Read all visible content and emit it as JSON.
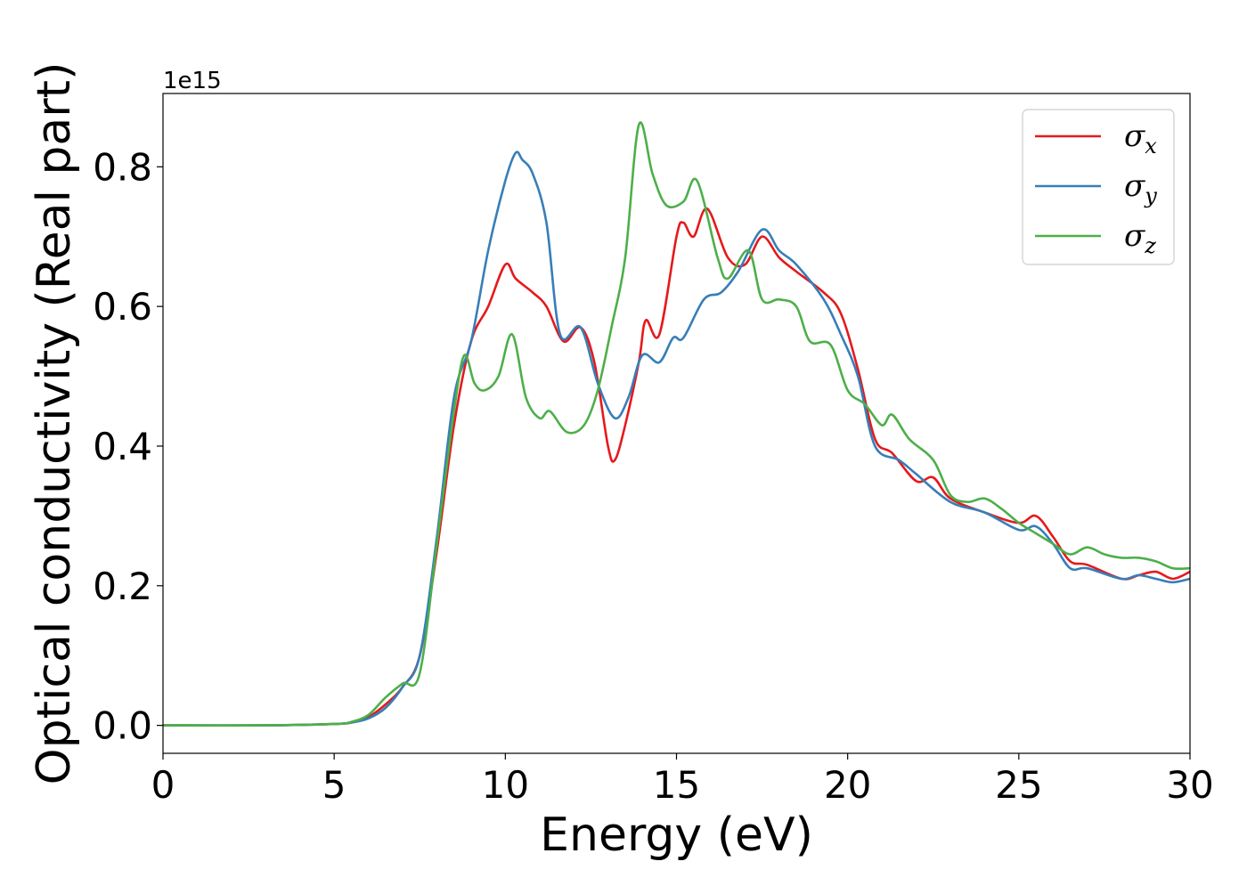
{
  "chart_data": {
    "type": "line",
    "xlabel": "Energy (eV)",
    "ylabel": "Optical conductivity (Real part)",
    "y_offset_text": "1e15",
    "xlim": [
      0,
      30
    ],
    "ylim": [
      -0.04,
      0.905
    ],
    "xticks": [
      0,
      5,
      10,
      15,
      20,
      25,
      30
    ],
    "xtick_labels": [
      "0",
      "5",
      "10",
      "15",
      "20",
      "25",
      "30"
    ],
    "yticks": [
      0.0,
      0.2,
      0.4,
      0.6,
      0.8
    ],
    "ytick_labels": [
      "0.0",
      "0.2",
      "0.4",
      "0.6",
      "0.8"
    ],
    "grid": false,
    "legend_position": "top-right",
    "series": [
      {
        "name": "σx",
        "label_main": "σ",
        "label_sub": "x",
        "color": "#e41a1c",
        "points": [
          [
            0,
            0.0
          ],
          [
            3,
            0.0
          ],
          [
            5,
            0.002
          ],
          [
            5.5,
            0.004
          ],
          [
            6,
            0.012
          ],
          [
            6.5,
            0.03
          ],
          [
            7,
            0.055
          ],
          [
            7.5,
            0.1
          ],
          [
            8,
            0.25
          ],
          [
            8.5,
            0.43
          ],
          [
            9,
            0.55
          ],
          [
            9.5,
            0.6
          ],
          [
            10,
            0.66
          ],
          [
            10.3,
            0.64
          ],
          [
            10.8,
            0.62
          ],
          [
            11.2,
            0.6
          ],
          [
            11.7,
            0.55
          ],
          [
            12.2,
            0.57
          ],
          [
            12.6,
            0.52
          ],
          [
            13,
            0.4
          ],
          [
            13.2,
            0.38
          ],
          [
            13.5,
            0.43
          ],
          [
            13.9,
            0.52
          ],
          [
            14.1,
            0.58
          ],
          [
            14.5,
            0.56
          ],
          [
            15,
            0.7
          ],
          [
            15.2,
            0.72
          ],
          [
            15.5,
            0.7
          ],
          [
            15.9,
            0.74
          ],
          [
            16.5,
            0.67
          ],
          [
            17,
            0.66
          ],
          [
            17.5,
            0.7
          ],
          [
            18,
            0.67
          ],
          [
            18.5,
            0.65
          ],
          [
            19.3,
            0.62
          ],
          [
            19.8,
            0.59
          ],
          [
            20.3,
            0.51
          ],
          [
            20.8,
            0.41
          ],
          [
            21.3,
            0.39
          ],
          [
            22,
            0.35
          ],
          [
            22.5,
            0.355
          ],
          [
            23,
            0.325
          ],
          [
            24,
            0.305
          ],
          [
            25,
            0.29
          ],
          [
            25.5,
            0.3
          ],
          [
            26,
            0.27
          ],
          [
            26.5,
            0.235
          ],
          [
            27,
            0.23
          ],
          [
            28,
            0.21
          ],
          [
            28.5,
            0.215
          ],
          [
            29,
            0.22
          ],
          [
            29.5,
            0.21
          ],
          [
            30,
            0.22
          ]
        ]
      },
      {
        "name": "σy",
        "label_main": "σ",
        "label_sub": "y",
        "color": "#377eb8",
        "points": [
          [
            0,
            0.0
          ],
          [
            3,
            0.0
          ],
          [
            5,
            0.002
          ],
          [
            5.5,
            0.004
          ],
          [
            6,
            0.01
          ],
          [
            6.5,
            0.025
          ],
          [
            7,
            0.055
          ],
          [
            7.5,
            0.1
          ],
          [
            8,
            0.27
          ],
          [
            8.5,
            0.47
          ],
          [
            9,
            0.55
          ],
          [
            9.5,
            0.68
          ],
          [
            10,
            0.78
          ],
          [
            10.3,
            0.82
          ],
          [
            10.5,
            0.81
          ],
          [
            10.8,
            0.79
          ],
          [
            11.2,
            0.72
          ],
          [
            11.6,
            0.56
          ],
          [
            12.2,
            0.57
          ],
          [
            12.7,
            0.49
          ],
          [
            13.2,
            0.44
          ],
          [
            13.6,
            0.47
          ],
          [
            14,
            0.53
          ],
          [
            14.5,
            0.52
          ],
          [
            14.9,
            0.555
          ],
          [
            15.2,
            0.555
          ],
          [
            15.8,
            0.61
          ],
          [
            16.3,
            0.62
          ],
          [
            16.8,
            0.65
          ],
          [
            17.5,
            0.71
          ],
          [
            18,
            0.68
          ],
          [
            18.5,
            0.66
          ],
          [
            19.3,
            0.61
          ],
          [
            19.8,
            0.56
          ],
          [
            20.3,
            0.5
          ],
          [
            20.8,
            0.4
          ],
          [
            21.5,
            0.38
          ],
          [
            22,
            0.36
          ],
          [
            23,
            0.32
          ],
          [
            24,
            0.305
          ],
          [
            25,
            0.28
          ],
          [
            25.5,
            0.285
          ],
          [
            26,
            0.26
          ],
          [
            26.5,
            0.225
          ],
          [
            27,
            0.225
          ],
          [
            28,
            0.21
          ],
          [
            28.5,
            0.215
          ],
          [
            29,
            0.21
          ],
          [
            29.5,
            0.205
          ],
          [
            30,
            0.21
          ]
        ]
      },
      {
        "name": "σz",
        "label_main": "σ",
        "label_sub": "z",
        "color": "#4daf4a",
        "points": [
          [
            0,
            0.0
          ],
          [
            3,
            0.0
          ],
          [
            5,
            0.002
          ],
          [
            5.5,
            0.005
          ],
          [
            6,
            0.015
          ],
          [
            6.5,
            0.04
          ],
          [
            7,
            0.06
          ],
          [
            7.5,
            0.075
          ],
          [
            8,
            0.26
          ],
          [
            8.5,
            0.45
          ],
          [
            8.8,
            0.53
          ],
          [
            9.1,
            0.49
          ],
          [
            9.4,
            0.48
          ],
          [
            9.8,
            0.5
          ],
          [
            10.2,
            0.56
          ],
          [
            10.6,
            0.47
          ],
          [
            11,
            0.44
          ],
          [
            11.3,
            0.45
          ],
          [
            11.8,
            0.42
          ],
          [
            12.3,
            0.43
          ],
          [
            12.7,
            0.48
          ],
          [
            13.1,
            0.57
          ],
          [
            13.5,
            0.67
          ],
          [
            13.9,
            0.86
          ],
          [
            14.3,
            0.79
          ],
          [
            14.7,
            0.745
          ],
          [
            15.2,
            0.75
          ],
          [
            15.6,
            0.78
          ],
          [
            16.2,
            0.67
          ],
          [
            16.5,
            0.64
          ],
          [
            17.1,
            0.68
          ],
          [
            17.5,
            0.61
          ],
          [
            18,
            0.61
          ],
          [
            18.5,
            0.6
          ],
          [
            18.9,
            0.55
          ],
          [
            19.5,
            0.545
          ],
          [
            20,
            0.48
          ],
          [
            20.5,
            0.46
          ],
          [
            21,
            0.43
          ],
          [
            21.3,
            0.445
          ],
          [
            21.8,
            0.41
          ],
          [
            22.5,
            0.38
          ],
          [
            23,
            0.33
          ],
          [
            23.5,
            0.32
          ],
          [
            24,
            0.325
          ],
          [
            24.5,
            0.31
          ],
          [
            25,
            0.29
          ],
          [
            25.5,
            0.275
          ],
          [
            26,
            0.26
          ],
          [
            26.5,
            0.245
          ],
          [
            27,
            0.255
          ],
          [
            27.5,
            0.245
          ],
          [
            28,
            0.24
          ],
          [
            28.5,
            0.24
          ],
          [
            29,
            0.235
          ],
          [
            29.5,
            0.225
          ],
          [
            30,
            0.225
          ]
        ]
      }
    ]
  }
}
